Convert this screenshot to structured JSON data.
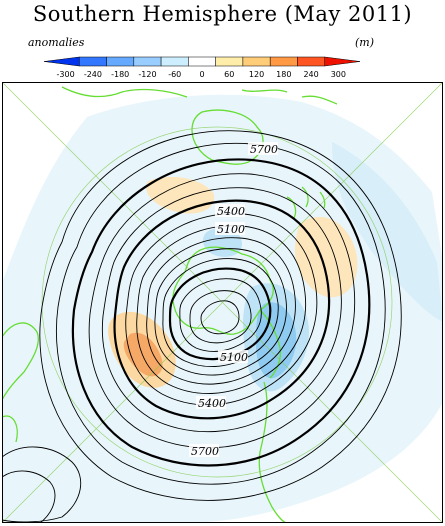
{
  "title": "Southern Hemisphere (May 2011)",
  "legend": {
    "left_label": "anomalies",
    "right_label": "(m)",
    "ticks": [
      "-300",
      "-240",
      "-180",
      "-120",
      "-60",
      "0",
      "60",
      "120",
      "180",
      "240",
      "300"
    ],
    "colors": [
      "#0033ee",
      "#3377ff",
      "#66aaff",
      "#99ccff",
      "#cceeff",
      "#ffffff",
      "#ffeeaa",
      "#ffcc77",
      "#ff9944",
      "#ff5522",
      "#ee1100"
    ]
  },
  "map": {
    "contour_labels": [
      "5700",
      "5400",
      "5100",
      "5100",
      "5400",
      "5700"
    ],
    "coastline_color": "#66dd33",
    "contour_color": "#000000"
  }
}
